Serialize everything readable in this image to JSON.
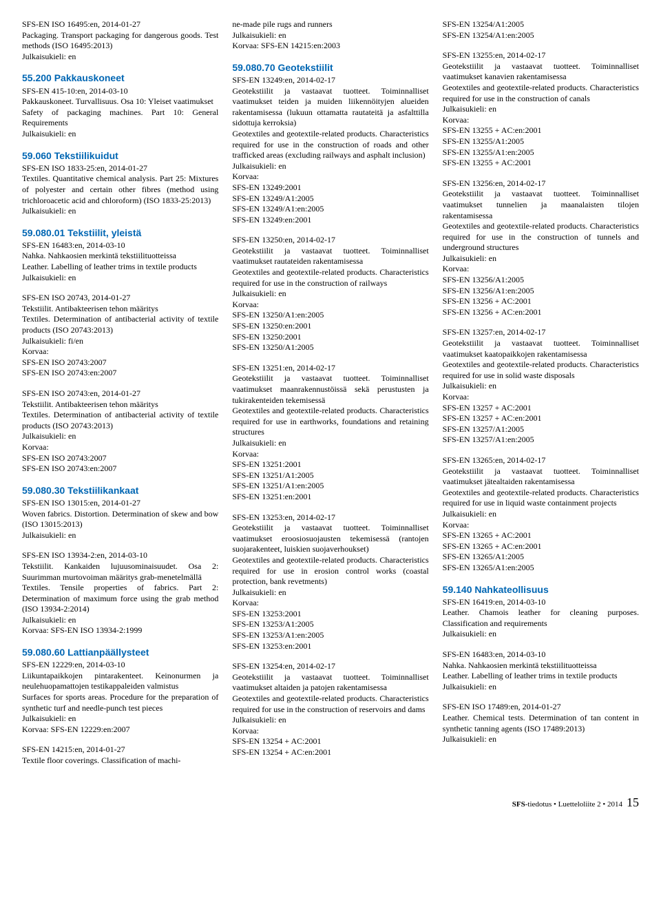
{
  "columns": [
    [
      {
        "body": "SFS-EN ISO 16495:en, 2014-01-27\nPackaging. Transport packaging for dangerous goods. Test methods (ISO 16495:2013)\nJulkaisukieli: en"
      },
      {
        "heading": "55.200 Pakkauskoneet",
        "body": "SFS-EN 415-10:en, 2014-03-10\nPakkauskoneet. Turvallisuus. Osa 10: Yleiset vaatimukset\nSafety of packaging machines. Part 10: General Requirements\nJulkaisukieli: en"
      },
      {
        "heading": "59.060 Tekstiilikuidut",
        "body": "SFS-EN ISO 1833-25:en, 2014-01-27\nTextiles. Quantitative chemical analysis. Part 25: Mixtures of polyester and certain other fibres (method using trichloroacetic acid and chloroform) (ISO 1833-25:2013)\nJulkaisukieli: en"
      },
      {
        "heading": "59.080.01 Tekstiilit, yleistä",
        "body": "SFS-EN 16483:en, 2014-03-10\nNahka. Nahkaosien merkintä tekstiilituotteissa\nLeather. Labelling of leather trims in textile products\nJulkaisukieli: en"
      },
      {
        "body": "SFS-EN ISO 20743, 2014-01-27\nTekstiilit. Antibakteerisen tehon määritys\nTextiles. Determination of antibacterial activity of textile products (ISO 20743:2013)\nJulkaisukieli: fi/en\nKorvaa:\nSFS-EN ISO 20743:2007\nSFS-EN ISO 20743:en:2007"
      },
      {
        "body": "SFS-EN ISO 20743:en, 2014-01-27\nTekstiilit. Antibakteerisen tehon määritys\nTextiles. Determination of antibacterial activity of textile products (ISO 20743:2013)\nJulkaisukieli: en\nKorvaa:\nSFS-EN ISO 20743:2007\nSFS-EN ISO 20743:en:2007"
      },
      {
        "heading": "59.080.30 Tekstiilikankaat",
        "body": "SFS-EN ISO 13015:en, 2014-01-27\nWoven fabrics. Distortion. Determination of skew and bow (ISO 13015:2013)\nJulkaisukieli: en"
      },
      {
        "body": "SFS-EN ISO 13934-2:en, 2014-03-10\nTekstiilit. Kankaiden lujuusominaisuudet. Osa 2: Suurimman murtovoiman määritys grab-menetelmällä\nTextiles. Tensile properties of fabrics. Part 2: Determination of maximum force using the grab method (ISO 13934-2:2014)\nJulkaisukieli: en\nKorvaa: SFS-EN ISO 13934-2:1999"
      },
      {
        "heading": "59.080.60 Lattianpäällysteet",
        "body": "SFS-EN 12229:en, 2014-03-10\nLiikuntapaikkojen pintarakenteet. Keinonurmen ja neulehuopamattojen testikappaleiden valmistus\nSurfaces for sports areas. Procedure for the preparation of synthetic turf and needle-punch test pieces\nJulkaisukieli: en\nKorvaa: SFS-EN 12229:en:2007"
      },
      {
        "body": "SFS-EN 14215:en, 2014-01-27\nTextile floor coverings. Classification of machi-"
      }
    ],
    [
      {
        "body": "ne-made pile rugs and runners\nJulkaisukieli: en\nKorvaa: SFS-EN 14215:en:2003"
      },
      {
        "heading": "59.080.70 Geotekstiilit",
        "body": "SFS-EN 13249:en, 2014-02-17\nGeotekstiilit ja vastaavat tuotteet. Toiminnalliset vaatimukset teiden ja muiden liikennöityjen alueiden rakentamisessa (lukuun ottamatta rautateitä ja asfalttilla sidottuja kerroksia)\nGeotextiles and geotextile-related products. Characteristics required for use in the construction of roads and other trafficked areas (excluding railways and asphalt inclusion)\nJulkaisukieli: en\nKorvaa:\nSFS-EN 13249:2001\nSFS-EN 13249/A1:2005\nSFS-EN 13249/A1:en:2005\nSFS-EN 13249:en:2001"
      },
      {
        "body": "SFS-EN 13250:en, 2014-02-17\nGeotekstiilit ja vastaavat tuotteet. Toiminnalliset vaatimukset rautateiden rakentamisessa\nGeotextiles and geotextile-related products. Characteristics required for use in the construction of railways\nJulkaisukieli: en\nKorvaa:\nSFS-EN 13250/A1:en:2005\nSFS-EN 13250:en:2001\nSFS-EN 13250:2001\nSFS-EN 13250/A1:2005"
      },
      {
        "body": "SFS-EN 13251:en, 2014-02-17\nGeotekstiilit ja vastaavat tuotteet. Toiminnalliset vaatimukset maanrakennustöissä sekä perustusten ja tukirakenteiden tekemisessä\nGeotextiles and geotextile-related products. Characteristics required for use in earthworks, foundations and retaining structures\nJulkaisukieli: en\nKorvaa:\nSFS-EN 13251:2001\nSFS-EN 13251/A1:2005\nSFS-EN 13251/A1:en:2005\nSFS-EN 13251:en:2001"
      },
      {
        "body": "SFS-EN 13253:en, 2014-02-17\nGeotekstiilit ja vastaavat tuotteet. Toiminnalliset vaatimukset eroosiosuojausten tekemisessä (rantojen suojarakenteet, luiskien suojaverhoukset)\nGeotextiles and geotextile-related products. Characteristics required for use in erosion control works (coastal protection, bank revetments)\nJulkaisukieli: en\nKorvaa:\nSFS-EN 13253:2001\nSFS-EN 13253/A1:2005\nSFS-EN 13253/A1:en:2005\nSFS-EN 13253:en:2001"
      },
      {
        "body": "SFS-EN 13254:en, 2014-02-17\nGeotekstiilit ja vastaavat tuotteet. Toiminnalliset vaatimukset altaiden ja patojen rakentamisessa\nGeotextiles and geotextile-related products. Characteristics required for use in the construction of reservoirs and dams\nJulkaisukieli: en\nKorvaa:\nSFS-EN 13254 + AC:2001\nSFS-EN 13254 + AC:en:2001"
      }
    ],
    [
      {
        "body": "SFS-EN 13254/A1:2005\nSFS-EN 13254/A1:en:2005"
      },
      {
        "body": "SFS-EN 13255:en, 2014-02-17\nGeotekstiilit ja vastaavat tuotteet. Toiminnalliset vaatimukset kanavien rakentamisessa\nGeotextiles and geotextile-related products. Characteristics required for use in the construction of canals\nJulkaisukieli: en\nKorvaa:\nSFS-EN 13255 + AC:en:2001\nSFS-EN 13255/A1:2005\nSFS-EN 13255/A1:en:2005\nSFS-EN 13255 + AC:2001"
      },
      {
        "body": "SFS-EN 13256:en, 2014-02-17\nGeotekstiilit ja vastaavat tuotteet. Toiminnalliset vaatimukset tunnelien ja maanalaisten tilojen rakentamisessa\nGeotextiles and geotextile-related products. Characteristics required for use in the construction of tunnels and underground structures\nJulkaisukieli: en\nKorvaa:\nSFS-EN 13256/A1:2005\nSFS-EN 13256/A1:en:2005\nSFS-EN 13256 + AC:2001\nSFS-EN 13256 + AC:en:2001"
      },
      {
        "body": "SFS-EN 13257:en, 2014-02-17\nGeotekstiilit ja vastaavat tuotteet. Toiminnalliset vaatimukset kaatopaikkojen rakentamisessa\nGeotextiles and geotextile-related products. Characteristics required for use in solid waste disposals\nJulkaisukieli: en\nKorvaa:\nSFS-EN 13257 + AC:2001\nSFS-EN 13257 + AC:en:2001\nSFS-EN 13257/A1:2005\nSFS-EN 13257/A1:en:2005"
      },
      {
        "body": "SFS-EN 13265:en, 2014-02-17\nGeotekstiilit ja vastaavat tuotteet. Toiminnalliset vaatimukset jätealtaiden rakentamisessa\nGeotextiles and geotextile-related products. Characteristics required for use in liquid waste containment projects\nJulkaisukieli: en\nKorvaa:\nSFS-EN 13265 + AC:2001\nSFS-EN 13265 + AC:en:2001\nSFS-EN 13265/A1:2005\nSFS-EN 13265/A1:en:2005"
      },
      {
        "heading": "59.140 Nahkateollisuus",
        "body": "SFS-EN 16419:en, 2014-03-10\nLeather. Chamois leather for cleaning purposes. Classification and requirements\nJulkaisukieli: en"
      },
      {
        "body": "SFS-EN 16483:en, 2014-03-10\nNahka. Nahkaosien merkintä tekstiilituotteissa\nLeather. Labelling of leather trims in textile products\nJulkaisukieli: en"
      },
      {
        "body": "SFS-EN ISO 17489:en, 2014-01-27\nLeather. Chemical tests. Determination of tan content in synthetic tanning agents (ISO 17489:2013)\nJulkaisukieli: en"
      }
    ]
  ],
  "footer": {
    "brand": "SFS",
    "suffix": "-tiedotus ",
    "bullet": "•",
    "text": " Luetteloliite 2 ",
    "bullet2": "•",
    "year": " 2014",
    "page": "15"
  }
}
